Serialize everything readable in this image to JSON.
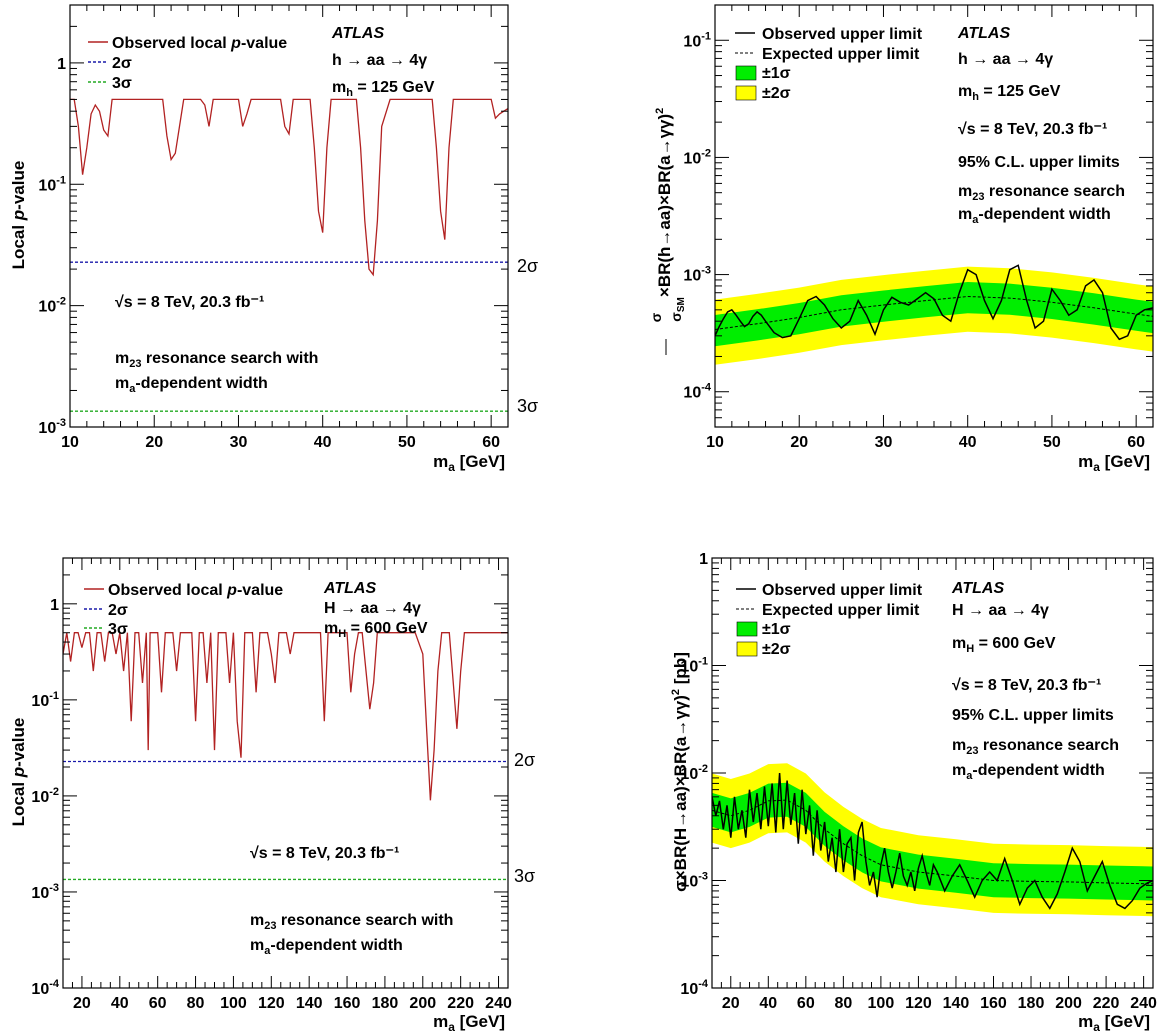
{
  "chart_data": [
    {
      "id": "tl",
      "type": "line",
      "ylog": true,
      "xlim": [
        10,
        62
      ],
      "ylim": [
        0.001,
        3
      ],
      "xticks": [
        10,
        20,
        30,
        40,
        50,
        60
      ],
      "xlabel": "m_a [GeV]",
      "ylabel": "Local p-value",
      "atlas": "ATLAS",
      "process": "h → aa → 4γ",
      "mass_label": "m_h = 125 GeV",
      "energy": "√s = 8 TeV, 20.3 fb⁻¹",
      "note1": "m₂₃ resonance search with",
      "note2": "m_a-dependent width",
      "legend": [
        "Observed local p-value",
        "2σ",
        "3σ"
      ],
      "sigma_lines": [
        {
          "label": "2σ",
          "p": 0.0228,
          "color": "#1a1aaa"
        },
        {
          "label": "3σ",
          "p": 0.00135,
          "color": "#22aa22"
        }
      ],
      "observed_color": "#b22222",
      "series": [
        {
          "name": "Observed local p-value",
          "x": [
            10,
            10.5,
            11,
            11.5,
            12,
            12.5,
            13,
            13.5,
            14,
            14.5,
            15,
            15.5,
            16,
            17,
            18,
            19,
            20,
            21,
            21.5,
            22,
            22.5,
            23,
            23.5,
            24,
            25,
            25.5,
            26,
            26.5,
            27,
            28,
            29,
            30,
            30.5,
            31,
            31.5,
            32,
            33,
            34,
            35,
            35.5,
            36,
            36.5,
            37,
            38,
            38.5,
            39,
            39.5,
            40,
            40.5,
            41,
            41.5,
            42,
            43,
            44,
            44.5,
            45,
            45.5,
            46,
            46.5,
            47,
            48,
            49,
            50,
            51,
            52,
            53,
            53.5,
            54,
            54.5,
            55,
            55.5,
            56,
            57,
            58,
            59,
            60,
            60.5,
            61,
            61.5,
            62
          ],
          "y": [
            0.5,
            0.5,
            0.3,
            0.12,
            0.2,
            0.38,
            0.45,
            0.4,
            0.28,
            0.25,
            0.5,
            0.5,
            0.5,
            0.5,
            0.5,
            0.5,
            0.5,
            0.5,
            0.25,
            0.16,
            0.18,
            0.3,
            0.5,
            0.5,
            0.5,
            0.5,
            0.45,
            0.3,
            0.5,
            0.5,
            0.5,
            0.5,
            0.3,
            0.38,
            0.5,
            0.5,
            0.5,
            0.5,
            0.5,
            0.3,
            0.26,
            0.5,
            0.5,
            0.5,
            0.5,
            0.2,
            0.06,
            0.04,
            0.2,
            0.5,
            0.5,
            0.5,
            0.5,
            0.5,
            0.2,
            0.05,
            0.02,
            0.018,
            0.05,
            0.3,
            0.5,
            0.5,
            0.5,
            0.5,
            0.5,
            0.5,
            0.2,
            0.06,
            0.035,
            0.2,
            0.5,
            0.5,
            0.5,
            0.5,
            0.5,
            0.5,
            0.35,
            0.38,
            0.4,
            0.42
          ]
        }
      ]
    },
    {
      "id": "tr",
      "type": "line",
      "ylog": true,
      "xlim": [
        10,
        62
      ],
      "ylim": [
        5e-05,
        0.2
      ],
      "xticks": [
        10,
        20,
        30,
        40,
        50,
        60
      ],
      "xlabel": "m_a [GeV]",
      "ylabel": "σ/σ_SM × BR(h→aa) × BR(a→γγ)²",
      "atlas": "ATLAS",
      "process": "h → aa → 4γ",
      "mass_label": "m_h = 125 GeV",
      "energy": "√s = 8 TeV, 20.3 fb⁻¹",
      "cl": "95% C.L. upper limits",
      "note1": "m₂₃ resonance search",
      "note2": "m_a-dependent width",
      "legend": [
        "Observed upper limit",
        "Expected upper limit",
        "±1σ",
        "±2σ"
      ],
      "band_colors": {
        "one_sigma": "#00ee00",
        "two_sigma": "#ffff00"
      },
      "expected": {
        "x": [
          10,
          15,
          20,
          25,
          30,
          35,
          40,
          45,
          50,
          55,
          60,
          62
        ],
        "y": [
          0.00034,
          0.00038,
          0.00043,
          0.0005,
          0.00055,
          0.0006,
          0.00065,
          0.00063,
          0.00058,
          0.00052,
          0.00046,
          0.00044
        ]
      },
      "band1_factor": [
        1.33,
        0.72
      ],
      "band2_factor": [
        1.8,
        0.5
      ],
      "series": [
        {
          "name": "Observed upper limit",
          "x": [
            10,
            10.5,
            11,
            11.5,
            12,
            12.5,
            13,
            13.5,
            14,
            14.5,
            15,
            15.5,
            16,
            17,
            18,
            19,
            20,
            21,
            22,
            23,
            24,
            25,
            26,
            27,
            28,
            29,
            30,
            31,
            32,
            33,
            34,
            35,
            36,
            37,
            38,
            39,
            40,
            41,
            42,
            43,
            44,
            45,
            46,
            47,
            48,
            49,
            50,
            51,
            52,
            53,
            54,
            55,
            56,
            57,
            58,
            59,
            60,
            61,
            62
          ],
          "y": [
            0.0003,
            0.00036,
            0.00042,
            0.00048,
            0.0005,
            0.00045,
            0.0004,
            0.00036,
            0.00038,
            0.00044,
            0.00048,
            0.00045,
            0.0004,
            0.00032,
            0.00029,
            0.0003,
            0.00042,
            0.0006,
            0.00065,
            0.00055,
            0.00042,
            0.00035,
            0.0004,
            0.0006,
            0.00045,
            0.00031,
            0.0005,
            0.00064,
            0.00058,
            0.00055,
            0.00062,
            0.0007,
            0.00062,
            0.00045,
            0.0004,
            0.0007,
            0.0011,
            0.001,
            0.0006,
            0.00042,
            0.0006,
            0.0011,
            0.0012,
            0.0006,
            0.00035,
            0.0004,
            0.00075,
            0.0006,
            0.00045,
            0.0005,
            0.0008,
            0.0009,
            0.0007,
            0.00035,
            0.00028,
            0.0003,
            0.00045,
            0.0005,
            0.00052
          ]
        }
      ]
    },
    {
      "id": "bl",
      "type": "line",
      "ylog": true,
      "xlim": [
        10,
        245
      ],
      "ylim": [
        0.0001,
        3
      ],
      "xticks": [
        20,
        40,
        60,
        80,
        100,
        120,
        140,
        160,
        180,
        200,
        220,
        240
      ],
      "xlabel": "m_a [GeV]",
      "ylabel": "Local p-value",
      "atlas": "ATLAS",
      "process": "H → aa → 4γ",
      "mass_label": "m_H = 600 GeV",
      "energy": "√s = 8 TeV, 20.3 fb⁻¹",
      "note1": "m₂₃ resonance search with",
      "note2": "m_a-dependent width",
      "legend": [
        "Observed local p-value",
        "2σ",
        "3σ"
      ],
      "sigma_lines": [
        {
          "label": "2σ",
          "p": 0.0228,
          "color": "#1a1aaa"
        },
        {
          "label": "3σ",
          "p": 0.00135,
          "color": "#22aa22"
        }
      ],
      "observed_color": "#b22222",
      "series": [
        {
          "name": "Observed local p-value",
          "x": [
            10,
            12,
            14,
            16,
            18,
            20,
            22,
            24,
            26,
            28,
            30,
            32,
            34,
            36,
            38,
            40,
            42,
            44,
            46,
            48,
            50,
            52,
            54,
            55,
            56,
            58,
            60,
            62,
            64,
            66,
            68,
            70,
            72,
            74,
            76,
            78,
            80,
            82,
            84,
            86,
            88,
            90,
            92,
            94,
            96,
            98,
            100,
            102,
            104,
            106,
            108,
            110,
            112,
            114,
            116,
            118,
            120,
            122,
            124,
            126,
            128,
            130,
            132,
            134,
            136,
            140,
            144,
            146,
            148,
            150,
            152,
            154,
            160,
            162,
            164,
            166,
            168,
            170,
            172,
            174,
            176,
            178,
            180,
            184,
            190,
            196,
            200,
            202,
            204,
            206,
            208,
            210,
            214,
            218,
            220,
            222,
            226,
            230,
            236,
            240,
            245
          ],
          "y": [
            0.3,
            0.5,
            0.25,
            0.5,
            0.5,
            0.35,
            0.5,
            0.5,
            0.2,
            0.5,
            0.5,
            0.25,
            0.5,
            0.5,
            0.3,
            0.5,
            0.2,
            0.5,
            0.06,
            0.5,
            0.5,
            0.15,
            0.5,
            0.03,
            0.5,
            0.5,
            0.5,
            0.12,
            0.5,
            0.5,
            0.5,
            0.2,
            0.5,
            0.5,
            0.5,
            0.5,
            0.06,
            0.5,
            0.5,
            0.15,
            0.5,
            0.03,
            0.5,
            0.5,
            0.5,
            0.15,
            0.5,
            0.06,
            0.025,
            0.5,
            0.5,
            0.5,
            0.12,
            0.5,
            0.5,
            0.5,
            0.3,
            0.15,
            0.5,
            0.5,
            0.5,
            0.3,
            0.5,
            0.5,
            0.5,
            0.5,
            0.5,
            0.5,
            0.06,
            0.5,
            0.5,
            0.5,
            0.5,
            0.12,
            0.3,
            0.5,
            0.5,
            0.2,
            0.08,
            0.15,
            0.5,
            0.5,
            0.5,
            0.5,
            0.5,
            0.5,
            0.3,
            0.05,
            0.009,
            0.03,
            0.2,
            0.5,
            0.5,
            0.05,
            0.2,
            0.5,
            0.5,
            0.5,
            0.5,
            0.5,
            0.5
          ]
        }
      ]
    },
    {
      "id": "br",
      "type": "line",
      "ylog": true,
      "xlim": [
        10,
        245
      ],
      "ylim": [
        0.0001,
        1
      ],
      "xticks": [
        20,
        40,
        60,
        80,
        100,
        120,
        140,
        160,
        180,
        200,
        220,
        240
      ],
      "xlabel": "m_a [GeV]",
      "ylabel": "σ × BR(H→aa) × BR(a→γγ)² [pb]",
      "atlas": "ATLAS",
      "process": "H → aa → 4γ",
      "mass_label": "m_H = 600 GeV",
      "energy": "√s = 8 TeV, 20.3 fb⁻¹",
      "cl": "95% C.L. upper limits",
      "note1": "m₂₃ resonance search",
      "note2": "m_a-dependent width",
      "legend": [
        "Observed upper limit",
        "Expected upper limit",
        "±1σ",
        "±2σ"
      ],
      "band_colors": {
        "one_sigma": "#00ee00",
        "two_sigma": "#ffff00"
      },
      "expected": {
        "x": [
          10,
          20,
          30,
          40,
          50,
          60,
          70,
          80,
          90,
          100,
          120,
          140,
          160,
          180,
          200,
          220,
          245
        ],
        "y": [
          0.0045,
          0.004,
          0.0045,
          0.0055,
          0.0056,
          0.0045,
          0.003,
          0.0022,
          0.0017,
          0.0014,
          0.0012,
          0.0011,
          0.001,
          0.00098,
          0.00097,
          0.00095,
          0.00093
        ]
      },
      "band1_factor": [
        1.45,
        0.7
      ],
      "band2_factor": [
        2.2,
        0.5
      ],
      "series": [
        {
          "name": "Observed upper limit",
          "x": [
            10,
            12,
            14,
            16,
            18,
            20,
            22,
            24,
            26,
            28,
            30,
            32,
            34,
            36,
            38,
            40,
            42,
            44,
            46,
            48,
            50,
            52,
            54,
            56,
            58,
            60,
            62,
            64,
            66,
            68,
            70,
            72,
            74,
            76,
            78,
            80,
            82,
            84,
            86,
            88,
            90,
            92,
            94,
            96,
            98,
            100,
            102,
            104,
            106,
            108,
            110,
            112,
            114,
            116,
            118,
            120,
            122,
            124,
            126,
            128,
            130,
            134,
            138,
            142,
            146,
            150,
            154,
            158,
            162,
            166,
            170,
            174,
            178,
            182,
            186,
            190,
            194,
            198,
            202,
            206,
            210,
            214,
            218,
            222,
            226,
            230,
            234,
            238,
            242,
            245
          ],
          "y": [
            0.006,
            0.004,
            0.0055,
            0.003,
            0.005,
            0.0025,
            0.006,
            0.003,
            0.0045,
            0.0025,
            0.007,
            0.0035,
            0.0065,
            0.003,
            0.0075,
            0.0032,
            0.008,
            0.0028,
            0.01,
            0.003,
            0.0085,
            0.0033,
            0.0065,
            0.0022,
            0.007,
            0.0027,
            0.005,
            0.0017,
            0.0045,
            0.0019,
            0.0035,
            0.0015,
            0.0025,
            0.0012,
            0.003,
            0.0012,
            0.0022,
            0.0025,
            0.001,
            0.0028,
            0.0035,
            0.0015,
            0.0009,
            0.0012,
            0.0007,
            0.0014,
            0.002,
            0.0012,
            0.00085,
            0.0012,
            0.0018,
            0.0011,
            0.0009,
            0.0012,
            0.0008,
            0.0013,
            0.0017,
            0.0012,
            0.0009,
            0.0014,
            0.0012,
            0.0008,
            0.0011,
            0.0014,
            0.001,
            0.0007,
            0.001,
            0.0012,
            0.001,
            0.0016,
            0.001,
            0.0006,
            0.00085,
            0.001,
            0.0007,
            0.00055,
            0.00075,
            0.0012,
            0.002,
            0.0015,
            0.0008,
            0.0011,
            0.0015,
            0.0009,
            0.0006,
            0.00055,
            0.00065,
            0.00085,
            0.00095,
            0.001
          ]
        }
      ]
    }
  ]
}
